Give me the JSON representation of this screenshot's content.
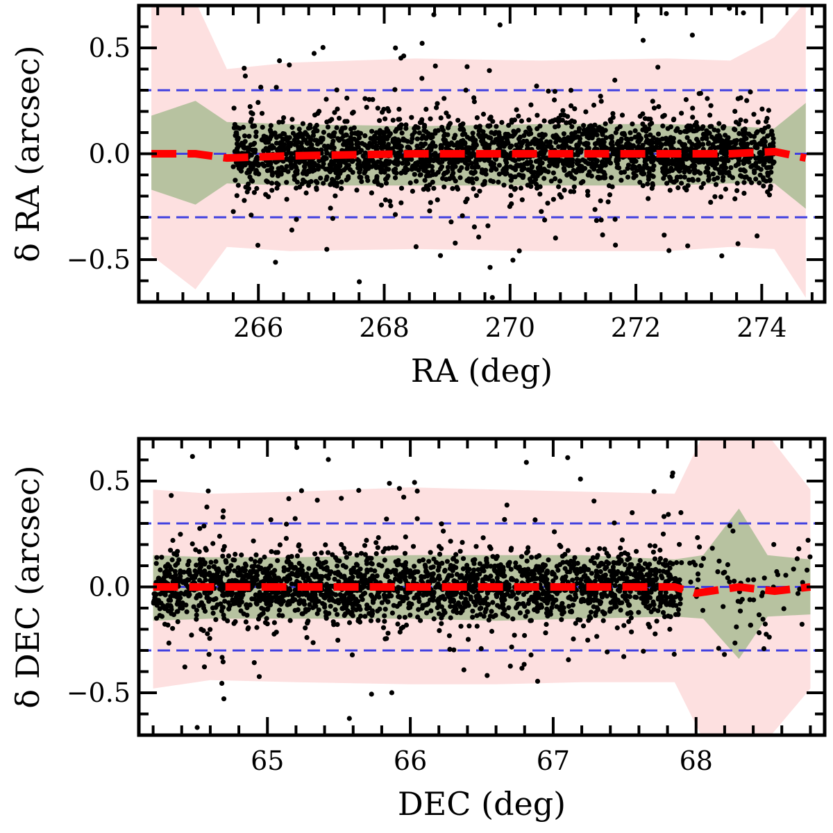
{
  "chart_data": [
    {
      "type": "scatter",
      "panel": "top",
      "xlabel": "RA (deg)",
      "ylabel": "δ RA (arcsec)",
      "xlim": [
        264.1,
        275.0
      ],
      "ylim": [
        -0.7,
        0.7
      ],
      "xticks": [
        266,
        268,
        270,
        272,
        274
      ],
      "xtick_labels": [
        "266",
        "268",
        "270",
        "272",
        "274"
      ],
      "yticks": [
        0.5,
        0.0,
        -0.5
      ],
      "ytick_labels": [
        "0.5",
        "0.0",
        "−0.5"
      ],
      "reference_lines": [
        0.3,
        -0.3
      ],
      "band_x": [
        264.3,
        265.0,
        265.5,
        266.5,
        268.5,
        270.5,
        272.5,
        273.5,
        274.2,
        274.7
      ],
      "outer_upper": [
        0.7,
        0.72,
        0.4,
        0.43,
        0.45,
        0.44,
        0.45,
        0.44,
        0.55,
        0.72
      ],
      "outer_lower": [
        -0.48,
        -0.64,
        -0.44,
        -0.46,
        -0.45,
        -0.46,
        -0.46,
        -0.44,
        -0.45,
        -0.68
      ],
      "inner_upper": [
        0.18,
        0.25,
        0.15,
        0.14,
        0.13,
        0.14,
        0.14,
        0.13,
        0.12,
        0.24
      ],
      "inner_lower": [
        -0.17,
        -0.24,
        -0.14,
        -0.15,
        -0.15,
        -0.15,
        -0.15,
        -0.14,
        -0.14,
        -0.26
      ],
      "median_x": [
        264.3,
        265.0,
        265.5,
        266.5,
        268.5,
        270.5,
        272.5,
        273.5,
        274.2,
        274.7
      ],
      "median_y": [
        0.0,
        0.0,
        -0.02,
        -0.01,
        0.0,
        0.0,
        0.0,
        0.0,
        0.01,
        -0.02
      ],
      "scatter": {
        "n_points": 2600,
        "core_x_range": [
          265.6,
          274.2
        ],
        "core_sigma": 0.08,
        "outlier_fraction": 0.08
      },
      "colors": {
        "outer_band": "#fde0e0",
        "inner_band": "#b7c2a0",
        "points": "#000000",
        "median": "#ff0000",
        "reference": "#4040e0"
      }
    },
    {
      "type": "scatter",
      "panel": "bottom",
      "xlabel": "DEC (deg)",
      "ylabel": "δ DEC (arcsec)",
      "xlim": [
        64.1,
        68.9
      ],
      "ylim": [
        -0.7,
        0.7
      ],
      "xticks": [
        65,
        66,
        67,
        68
      ],
      "xtick_labels": [
        "65",
        "66",
        "67",
        "68"
      ],
      "yticks": [
        0.5,
        0.0,
        -0.5
      ],
      "ytick_labels": [
        "0.5",
        "0.0",
        "−0.5"
      ],
      "reference_lines": [
        0.3,
        -0.3
      ],
      "band_x": [
        64.2,
        64.6,
        65.2,
        66.0,
        66.6,
        67.2,
        67.85,
        68.05,
        68.3,
        68.5,
        68.8
      ],
      "outer_upper": [
        0.46,
        0.44,
        0.45,
        0.47,
        0.46,
        0.45,
        0.44,
        0.72,
        0.72,
        0.72,
        0.46
      ],
      "outer_lower": [
        -0.48,
        -0.44,
        -0.45,
        -0.46,
        -0.46,
        -0.45,
        -0.45,
        -0.72,
        -0.72,
        -0.72,
        -0.48
      ],
      "inner_upper": [
        0.15,
        0.14,
        0.14,
        0.15,
        0.15,
        0.15,
        0.13,
        0.15,
        0.37,
        0.15,
        0.13
      ],
      "inner_lower": [
        -0.16,
        -0.15,
        -0.15,
        -0.15,
        -0.16,
        -0.15,
        -0.14,
        -0.15,
        -0.34,
        -0.14,
        -0.13
      ],
      "median_x": [
        64.2,
        64.6,
        65.2,
        66.0,
        66.6,
        67.2,
        67.85,
        68.0,
        68.3,
        68.55,
        68.8
      ],
      "median_y": [
        0.0,
        0.0,
        0.0,
        0.0,
        0.0,
        0.0,
        0.0,
        -0.03,
        0.0,
        -0.02,
        0.0
      ],
      "scatter": {
        "n_points": 2300,
        "core_x_range": [
          64.2,
          67.9
        ],
        "core_sigma": 0.08,
        "outlier_fraction": 0.08,
        "sparse_x_range": [
          67.9,
          68.8
        ],
        "sparse_n": 70
      },
      "colors": {
        "outer_band": "#fde0e0",
        "inner_band": "#b7c2a0",
        "points": "#000000",
        "median": "#ff0000",
        "reference": "#4040e0"
      }
    }
  ]
}
